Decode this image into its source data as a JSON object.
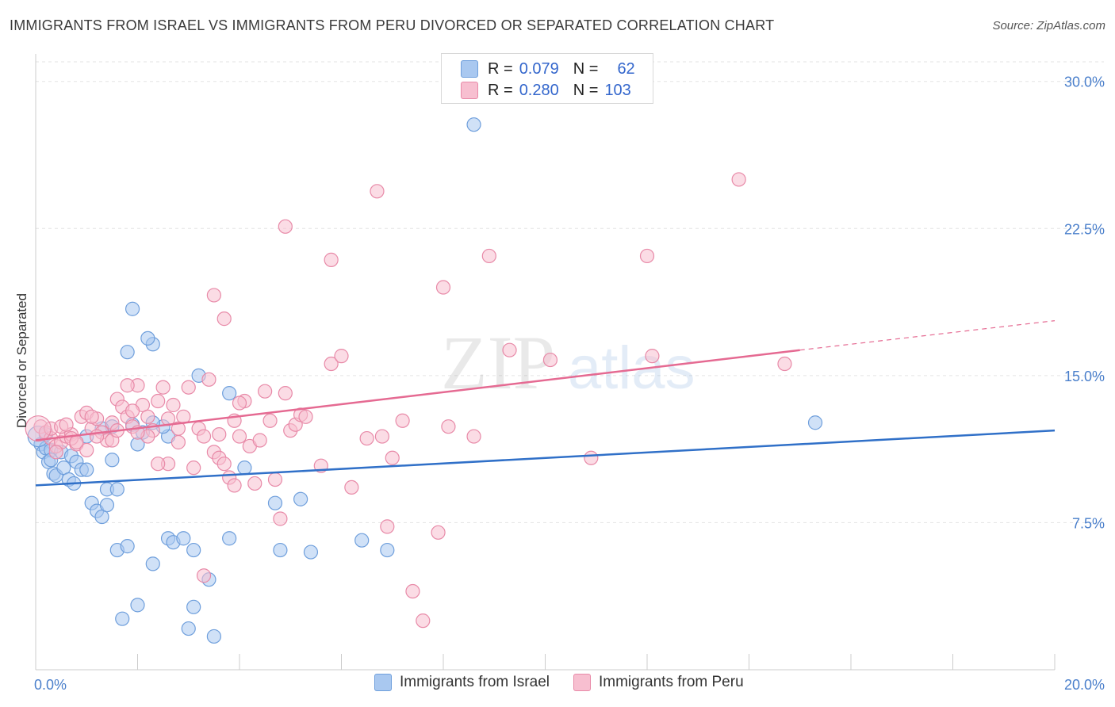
{
  "title": "IMMIGRANTS FROM ISRAEL VS IMMIGRANTS FROM PERU DIVORCED OR SEPARATED CORRELATION CHART",
  "source": "Source: ZipAtlas.com",
  "watermark": {
    "zip": "ZIP",
    "atlas": "atlas"
  },
  "legend": {
    "rows": [
      {
        "r_label": "R =",
        "r_value": "0.079",
        "n_label": "N =",
        "n_value": "62",
        "color": "#a9c8f0",
        "border": "#6f9fdc"
      },
      {
        "r_label": "R =",
        "r_value": "0.280",
        "n_label": "N =",
        "n_value": "103",
        "color": "#f7bfd0",
        "border": "#e88aa8"
      }
    ]
  },
  "bottom_legend": [
    {
      "label": "Immigrants from Israel",
      "color": "#a9c8f0",
      "border": "#6f9fdc"
    },
    {
      "label": "Immigrants from Peru",
      "color": "#f7bfd0",
      "border": "#e88aa8"
    }
  ],
  "chart_data": {
    "type": "scatter",
    "title": "IMMIGRANTS FROM ISRAEL VS IMMIGRANTS FROM PERU DIVORCED OR SEPARATED CORRELATION CHART",
    "xlabel": "",
    "ylabel": "Divorced or Separated",
    "xlim": [
      0,
      20
    ],
    "ylim": [
      0,
      31
    ],
    "x_tick_labels": [
      "0.0%",
      "20.0%"
    ],
    "y_ticks": [
      7.5,
      15.0,
      22.5,
      30.0
    ],
    "y_tick_labels": [
      "7.5%",
      "15.0%",
      "22.5%",
      "30.0%"
    ],
    "series": [
      {
        "name": "Immigrants from Israel",
        "color": "#6f9fdc",
        "fill": "#a9c8f0",
        "line_color": "#3070c8",
        "trend": {
          "x0": 0,
          "y0": 9.4,
          "x1": 20,
          "y1": 12.2
        },
        "points": [
          [
            0.1,
            11.5
          ],
          [
            0.15,
            11.1
          ],
          [
            0.2,
            11.3
          ],
          [
            0.25,
            10.6
          ],
          [
            0.3,
            11.2
          ],
          [
            0.35,
            10.0
          ],
          [
            0.4,
            9.9
          ],
          [
            0.5,
            11.1
          ],
          [
            0.55,
            10.3
          ],
          [
            0.65,
            9.7
          ],
          [
            0.7,
            10.9
          ],
          [
            0.8,
            10.6
          ],
          [
            0.9,
            10.2
          ],
          [
            1.0,
            10.2
          ],
          [
            1.1,
            8.5
          ],
          [
            1.2,
            8.1
          ],
          [
            1.3,
            7.8
          ],
          [
            1.4,
            9.2
          ],
          [
            1.6,
            6.1
          ],
          [
            1.8,
            6.3
          ],
          [
            1.5,
            10.7
          ],
          [
            1.6,
            9.2
          ],
          [
            1.9,
            12.5
          ],
          [
            2.0,
            11.5
          ],
          [
            2.1,
            12.1
          ],
          [
            2.3,
            16.6
          ],
          [
            2.2,
            16.9
          ],
          [
            1.9,
            18.4
          ],
          [
            1.8,
            16.2
          ],
          [
            2.0,
            3.3
          ],
          [
            1.7,
            2.6
          ],
          [
            2.3,
            5.4
          ],
          [
            2.6,
            6.7
          ],
          [
            2.7,
            6.5
          ],
          [
            2.9,
            6.7
          ],
          [
            3.1,
            6.1
          ],
          [
            3.2,
            15.0
          ],
          [
            3.4,
            4.6
          ],
          [
            3.5,
            1.7
          ],
          [
            3.1,
            3.2
          ],
          [
            3.0,
            2.1
          ],
          [
            3.8,
            6.7
          ],
          [
            3.8,
            14.1
          ],
          [
            4.1,
            10.3
          ],
          [
            4.7,
            8.5
          ],
          [
            4.8,
            6.1
          ],
          [
            5.2,
            8.7
          ],
          [
            5.4,
            6.0
          ],
          [
            6.4,
            6.6
          ],
          [
            6.9,
            6.1
          ],
          [
            8.6,
            27.8
          ],
          [
            15.3,
            12.6
          ],
          [
            1.5,
            12.4
          ],
          [
            0.2,
            12.0
          ],
          [
            1.0,
            11.9
          ],
          [
            2.6,
            11.9
          ],
          [
            1.3,
            12.3
          ],
          [
            0.3,
            10.7
          ],
          [
            0.75,
            9.5
          ],
          [
            2.5,
            12.4
          ],
          [
            2.3,
            12.6
          ],
          [
            1.4,
            8.4
          ]
        ]
      },
      {
        "name": "Immigrants from Peru",
        "color": "#e88aa8",
        "fill": "#f7bfd0",
        "line_color": "#e56a92",
        "trend": {
          "x0": 0,
          "y0": 11.7,
          "x1": 15.0,
          "y1": 16.3,
          "dash_x1": 20,
          "dash_y1": 17.8
        },
        "points": [
          [
            0.1,
            12.4
          ],
          [
            0.2,
            12.1
          ],
          [
            0.3,
            11.8
          ],
          [
            0.4,
            11.4
          ],
          [
            0.5,
            11.6
          ],
          [
            0.6,
            11.9
          ],
          [
            0.7,
            12.0
          ],
          [
            0.8,
            11.5
          ],
          [
            0.9,
            12.9
          ],
          [
            1.0,
            13.1
          ],
          [
            1.1,
            12.3
          ],
          [
            1.2,
            12.8
          ],
          [
            1.3,
            12.1
          ],
          [
            1.4,
            11.7
          ],
          [
            1.5,
            12.6
          ],
          [
            1.6,
            13.8
          ],
          [
            1.7,
            13.4
          ],
          [
            1.8,
            12.9
          ],
          [
            1.9,
            12.4
          ],
          [
            2.0,
            14.5
          ],
          [
            2.1,
            13.5
          ],
          [
            2.2,
            12.9
          ],
          [
            2.3,
            12.2
          ],
          [
            2.4,
            13.7
          ],
          [
            2.5,
            14.4
          ],
          [
            2.6,
            12.8
          ],
          [
            2.7,
            13.5
          ],
          [
            2.8,
            11.6
          ],
          [
            2.9,
            12.9
          ],
          [
            3.0,
            14.4
          ],
          [
            3.1,
            10.3
          ],
          [
            3.2,
            12.3
          ],
          [
            3.3,
            11.9
          ],
          [
            3.4,
            14.8
          ],
          [
            3.5,
            11.1
          ],
          [
            3.6,
            10.8
          ],
          [
            3.7,
            10.5
          ],
          [
            3.8,
            9.8
          ],
          [
            3.9,
            9.4
          ],
          [
            4.0,
            11.9
          ],
          [
            4.1,
            13.7
          ],
          [
            4.2,
            11.4
          ],
          [
            4.3,
            9.5
          ],
          [
            4.4,
            11.7
          ],
          [
            4.5,
            14.2
          ],
          [
            4.6,
            12.7
          ],
          [
            4.7,
            9.7
          ],
          [
            4.8,
            7.7
          ],
          [
            4.9,
            14.1
          ],
          [
            5.0,
            12.2
          ],
          [
            5.1,
            12.5
          ],
          [
            5.2,
            13.0
          ],
          [
            5.3,
            12.9
          ],
          [
            5.6,
            10.4
          ],
          [
            5.8,
            15.6
          ],
          [
            6.0,
            16.0
          ],
          [
            6.2,
            9.3
          ],
          [
            6.5,
            11.8
          ],
          [
            6.8,
            11.9
          ],
          [
            6.9,
            7.3
          ],
          [
            7.0,
            10.8
          ],
          [
            7.2,
            12.7
          ],
          [
            7.4,
            4.0
          ],
          [
            7.6,
            2.5
          ],
          [
            7.9,
            7.0
          ],
          [
            8.0,
            19.5
          ],
          [
            8.1,
            12.4
          ],
          [
            8.6,
            11.9
          ],
          [
            8.9,
            21.1
          ],
          [
            9.3,
            16.3
          ],
          [
            10.1,
            15.8
          ],
          [
            10.9,
            10.8
          ],
          [
            12.0,
            21.1
          ],
          [
            12.1,
            16.0
          ],
          [
            13.8,
            25.0
          ],
          [
            14.7,
            15.6
          ],
          [
            6.7,
            24.4
          ],
          [
            4.9,
            22.6
          ],
          [
            5.8,
            20.9
          ],
          [
            3.5,
            19.1
          ],
          [
            3.7,
            17.9
          ],
          [
            2.6,
            10.5
          ],
          [
            1.8,
            14.5
          ],
          [
            2.4,
            10.5
          ],
          [
            3.3,
            4.8
          ],
          [
            1.0,
            11.2
          ],
          [
            0.7,
            11.8
          ],
          [
            1.2,
            11.9
          ],
          [
            0.3,
            12.3
          ],
          [
            0.5,
            12.4
          ],
          [
            1.5,
            11.7
          ],
          [
            1.9,
            13.2
          ],
          [
            2.2,
            11.9
          ],
          [
            2.8,
            12.3
          ],
          [
            3.6,
            12.0
          ],
          [
            4.0,
            13.6
          ],
          [
            0.4,
            11.1
          ],
          [
            0.6,
            12.5
          ],
          [
            1.1,
            12.9
          ],
          [
            0.8,
            11.6
          ],
          [
            3.9,
            12.7
          ],
          [
            2.0,
            12.1
          ],
          [
            1.6,
            12.2
          ]
        ]
      }
    ]
  }
}
